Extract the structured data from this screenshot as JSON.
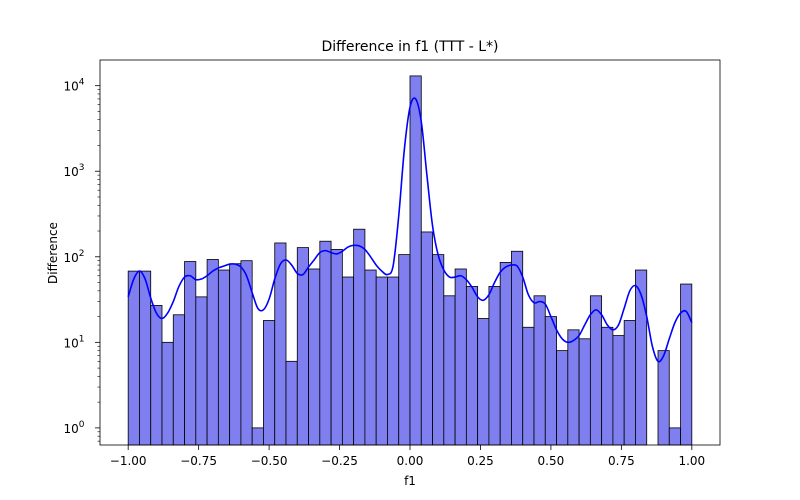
{
  "chart_data": {
    "type": "bar",
    "title": "Difference in f1 (TTT - L*)",
    "xlabel": "f1",
    "ylabel": "Difference",
    "xlim": [
      -1.1,
      1.1
    ],
    "ylim_log10": [
      -0.2,
      4.3
    ],
    "yscale": "log",
    "x_ticks": [
      -1.0,
      -0.75,
      -0.5,
      -0.25,
      0.0,
      0.25,
      0.5,
      0.75,
      1.0
    ],
    "x_tick_labels": [
      "−1.00",
      "−0.75",
      "−0.50",
      "−0.25",
      "0.00",
      "0.25",
      "0.50",
      "0.75",
      "1.00"
    ],
    "y_ticks_exp": [
      0,
      1,
      2,
      3,
      4
    ],
    "bin_start": -1.0,
    "bin_width": 0.04,
    "counts": [
      68,
      68,
      27,
      10,
      21,
      88,
      34,
      93,
      70,
      83,
      90,
      1,
      18,
      145,
      6,
      128,
      72,
      152,
      122,
      58,
      210,
      70,
      58,
      58,
      106,
      13000,
      195,
      106,
      35,
      72,
      45,
      19,
      45,
      86,
      116,
      15,
      35,
      20,
      8,
      14,
      11,
      35,
      15,
      12,
      18,
      70,
      0,
      8,
      1,
      48
    ],
    "kde_points": [
      [
        -1.0,
        34
      ],
      [
        -0.98,
        55
      ],
      [
        -0.96,
        68
      ],
      [
        -0.94,
        55
      ],
      [
        -0.92,
        33
      ],
      [
        -0.9,
        22
      ],
      [
        -0.88,
        19
      ],
      [
        -0.86,
        22
      ],
      [
        -0.84,
        30
      ],
      [
        -0.82,
        45
      ],
      [
        -0.8,
        58
      ],
      [
        -0.78,
        60
      ],
      [
        -0.76,
        54
      ],
      [
        -0.74,
        55
      ],
      [
        -0.72,
        60
      ],
      [
        -0.7,
        68
      ],
      [
        -0.68,
        74
      ],
      [
        -0.66,
        78
      ],
      [
        -0.64,
        82
      ],
      [
        -0.62,
        82
      ],
      [
        -0.6,
        76
      ],
      [
        -0.58,
        60
      ],
      [
        -0.56,
        38
      ],
      [
        -0.54,
        25
      ],
      [
        -0.52,
        24
      ],
      [
        -0.5,
        32
      ],
      [
        -0.48,
        55
      ],
      [
        -0.46,
        82
      ],
      [
        -0.44,
        92
      ],
      [
        -0.42,
        80
      ],
      [
        -0.4,
        64
      ],
      [
        -0.38,
        62
      ],
      [
        -0.36,
        76
      ],
      [
        -0.34,
        92
      ],
      [
        -0.32,
        112
      ],
      [
        -0.3,
        118
      ],
      [
        -0.28,
        112
      ],
      [
        -0.26,
        108
      ],
      [
        -0.24,
        116
      ],
      [
        -0.22,
        130
      ],
      [
        -0.2,
        136
      ],
      [
        -0.18,
        134
      ],
      [
        -0.16,
        122
      ],
      [
        -0.14,
        100
      ],
      [
        -0.12,
        80
      ],
      [
        -0.1,
        68
      ],
      [
        -0.08,
        62
      ],
      [
        -0.06,
        78
      ],
      [
        -0.04,
        300
      ],
      [
        -0.02,
        1800
      ],
      [
        0.0,
        5600
      ],
      [
        0.02,
        7000
      ],
      [
        0.04,
        3800
      ],
      [
        0.06,
        900
      ],
      [
        0.08,
        230
      ],
      [
        0.1,
        105
      ],
      [
        0.12,
        70
      ],
      [
        0.14,
        58
      ],
      [
        0.16,
        58
      ],
      [
        0.18,
        60
      ],
      [
        0.2,
        54
      ],
      [
        0.22,
        44
      ],
      [
        0.24,
        34
      ],
      [
        0.26,
        31
      ],
      [
        0.28,
        36
      ],
      [
        0.3,
        50
      ],
      [
        0.32,
        66
      ],
      [
        0.34,
        76
      ],
      [
        0.36,
        80
      ],
      [
        0.38,
        78
      ],
      [
        0.4,
        58
      ],
      [
        0.42,
        36
      ],
      [
        0.44,
        29
      ],
      [
        0.46,
        30
      ],
      [
        0.48,
        28
      ],
      [
        0.5,
        20
      ],
      [
        0.52,
        14
      ],
      [
        0.54,
        11
      ],
      [
        0.56,
        10
      ],
      [
        0.58,
        10.5
      ],
      [
        0.6,
        12
      ],
      [
        0.62,
        16
      ],
      [
        0.64,
        21
      ],
      [
        0.66,
        24
      ],
      [
        0.68,
        21
      ],
      [
        0.7,
        16
      ],
      [
        0.72,
        14
      ],
      [
        0.74,
        16
      ],
      [
        0.76,
        25
      ],
      [
        0.78,
        40
      ],
      [
        0.8,
        46
      ],
      [
        0.82,
        36
      ],
      [
        0.84,
        20
      ],
      [
        0.86,
        9
      ],
      [
        0.88,
        6
      ],
      [
        0.9,
        7
      ],
      [
        0.92,
        11
      ],
      [
        0.94,
        17
      ],
      [
        0.96,
        22
      ],
      [
        0.98,
        23
      ],
      [
        1.0,
        17
      ]
    ],
    "colors": {
      "bar_fill": "#7f7ff0",
      "bar_stroke": "#000000",
      "kde_line": "#0000ff"
    }
  }
}
